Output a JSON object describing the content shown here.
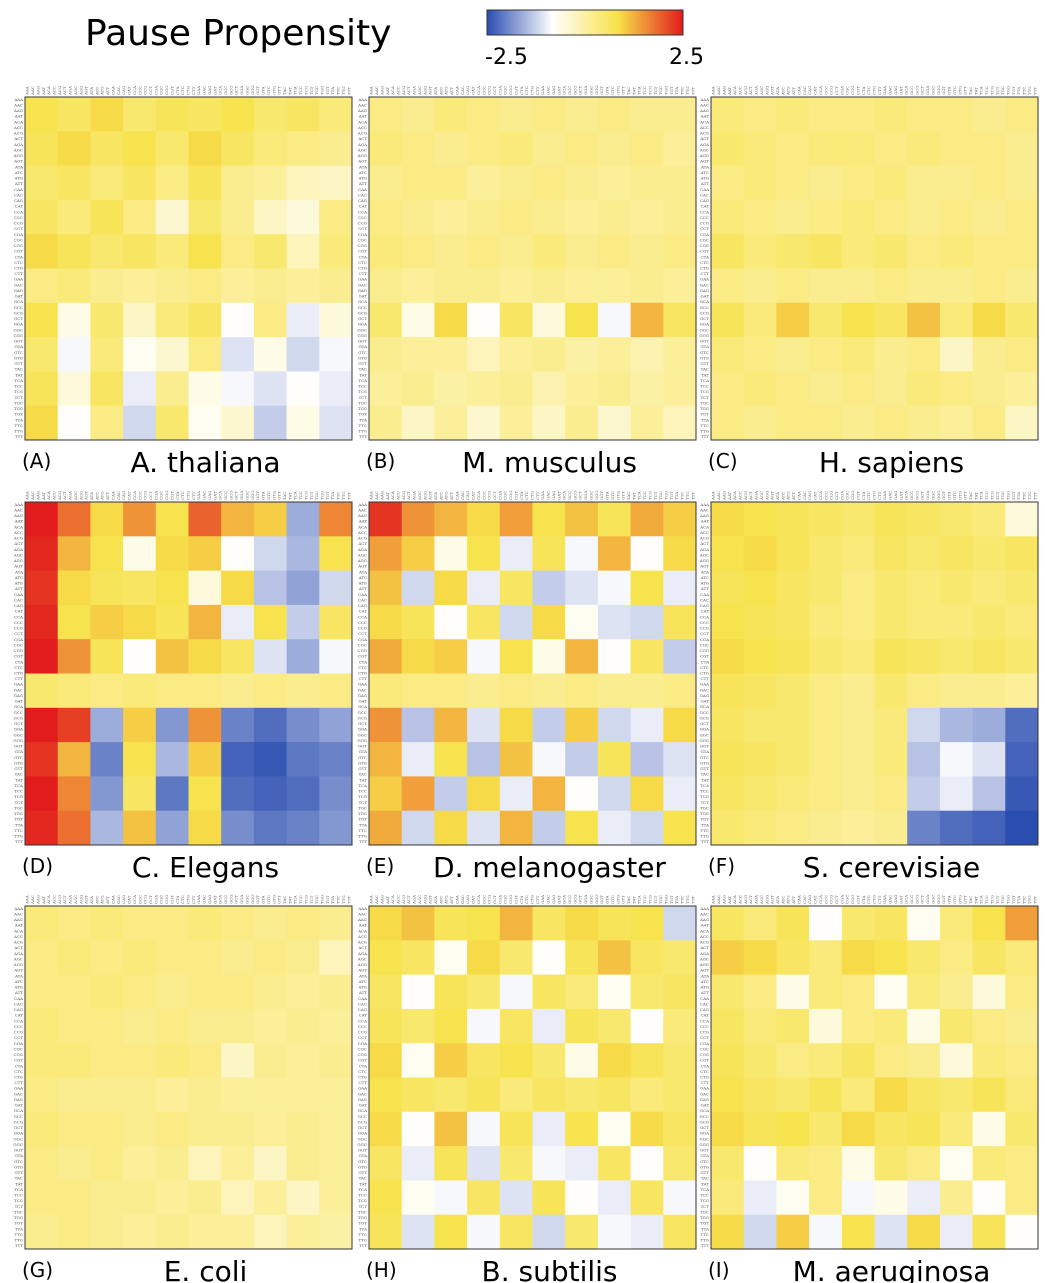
{
  "figure": {
    "title": "Pause Propensity",
    "colorbar": {
      "min": -2.5,
      "max": 2.5,
      "colors": [
        "#2a4db0",
        "#ffffff",
        "#f7e24a",
        "#e21c1c"
      ]
    }
  },
  "codons": [
    "AAA",
    "AAC",
    "AAG",
    "AAT",
    "ACA",
    "ACC",
    "ACG",
    "ACT",
    "AGA",
    "AGC",
    "AGG",
    "AGT",
    "ATA",
    "ATC",
    "ATG",
    "ATT",
    "CAA",
    "CAC",
    "CAG",
    "CAT",
    "CCA",
    "CCC",
    "CCG",
    "CCT",
    "CGA",
    "CGC",
    "CGG",
    "CGT",
    "CTA",
    "CTC",
    "CTG",
    "CTT",
    "GAA",
    "GAC",
    "GAG",
    "GAT",
    "GCA",
    "GCC",
    "GCG",
    "GCT",
    "GGA",
    "GGC",
    "GGG",
    "GGT",
    "GTA",
    "GTC",
    "GTG",
    "GTT",
    "TAC",
    "TAT",
    "TCA",
    "TCC",
    "TCG",
    "TCT",
    "TGC",
    "TGG",
    "TGT",
    "TTA",
    "TTC",
    "TTG",
    "TTT"
  ],
  "chart_data": [
    {
      "type": "heatmap",
      "panel": "(A)",
      "title": "A. thaliana",
      "values": [
        [
          0.8,
          0.6,
          0.9,
          0.5,
          0.7,
          0.6,
          0.8,
          0.5,
          0.6,
          0.4
        ],
        [
          0.7,
          0.9,
          0.6,
          0.8,
          0.5,
          0.9,
          0.6,
          0.4,
          0.3,
          0.2
        ],
        [
          0.5,
          0.6,
          0.4,
          0.6,
          0.3,
          0.7,
          0.2,
          0.1,
          -0.2,
          -0.3
        ],
        [
          0.6,
          0.4,
          0.7,
          0.3,
          -0.4,
          0.5,
          0.2,
          -0.3,
          -0.5,
          0.3
        ],
        [
          0.9,
          0.7,
          0.5,
          0.6,
          0.4,
          0.8,
          0.3,
          0.5,
          -0.2,
          0.4
        ],
        [
          0.3,
          0.4,
          0.2,
          0.1,
          0.2,
          0.3,
          0.1,
          0.2,
          0.1,
          0.2
        ],
        [
          0.8,
          -0.6,
          0.5,
          -0.3,
          0.4,
          0.6,
          -0.8,
          0.3,
          -1.0,
          -0.5
        ],
        [
          0.5,
          -0.9,
          0.4,
          -0.7,
          -0.4,
          0.3,
          -1.1,
          -0.6,
          -1.2,
          -0.9
        ],
        [
          0.7,
          -0.5,
          0.6,
          -1.0,
          0.2,
          -0.6,
          -0.9,
          -1.1,
          -0.8,
          -1.0
        ],
        [
          0.9,
          -0.8,
          0.3,
          -1.2,
          0.5,
          -0.7,
          -0.4,
          -1.3,
          -0.6,
          -1.1
        ]
      ]
    },
    {
      "type": "heatmap",
      "panel": "(B)",
      "title": "M. musculus",
      "values": [
        [
          0.3,
          0.2,
          0.4,
          0.3,
          0.2,
          0.3,
          0.2,
          0.3,
          0.2,
          0.2
        ],
        [
          0.4,
          0.3,
          0.2,
          0.3,
          0.4,
          0.2,
          0.3,
          0.2,
          0.3,
          0.1
        ],
        [
          0.2,
          0.3,
          0.3,
          0.1,
          0.2,
          0.3,
          0.2,
          0.1,
          0.2,
          0.2
        ],
        [
          0.3,
          0.2,
          0.1,
          0.2,
          0.3,
          0.2,
          0.1,
          0.2,
          0.1,
          0.2
        ],
        [
          0.4,
          0.3,
          0.2,
          0.3,
          0.2,
          0.4,
          0.2,
          0.3,
          0.2,
          0.3
        ],
        [
          0.2,
          0.1,
          0.2,
          0.2,
          0.1,
          0.2,
          0.1,
          0.1,
          0.2,
          0.1
        ],
        [
          0.5,
          -0.6,
          0.9,
          -0.8,
          0.6,
          -0.5,
          0.8,
          -0.9,
          1.2,
          0.6
        ],
        [
          0.2,
          0.1,
          0.1,
          -0.2,
          0.1,
          0.2,
          0.0,
          0.1,
          -0.1,
          0.1
        ],
        [
          0.1,
          0.2,
          0.0,
          0.1,
          0.2,
          -0.1,
          0.1,
          0.2,
          0.0,
          0.1
        ],
        [
          0.2,
          -0.3,
          0.1,
          -0.4,
          0.1,
          -0.3,
          0.2,
          -0.4,
          0.1,
          -0.2
        ]
      ]
    },
    {
      "type": "heatmap",
      "panel": "(C)",
      "title": "H. sapiens",
      "values": [
        [
          0.4,
          0.3,
          0.4,
          0.3,
          0.3,
          0.4,
          0.3,
          0.3,
          0.2,
          0.3
        ],
        [
          0.5,
          0.4,
          0.3,
          0.4,
          0.4,
          0.3,
          0.4,
          0.3,
          0.3,
          0.2
        ],
        [
          0.3,
          0.4,
          0.3,
          0.2,
          0.3,
          0.4,
          0.2,
          0.2,
          0.3,
          0.2
        ],
        [
          0.4,
          0.3,
          0.2,
          0.3,
          0.4,
          0.3,
          0.2,
          0.3,
          0.2,
          0.3
        ],
        [
          0.6,
          0.4,
          0.5,
          0.6,
          0.4,
          0.5,
          0.3,
          0.4,
          0.3,
          0.3
        ],
        [
          0.3,
          0.2,
          0.3,
          0.2,
          0.2,
          0.3,
          0.2,
          0.2,
          0.3,
          0.2
        ],
        [
          0.7,
          0.4,
          1.0,
          0.5,
          0.8,
          0.6,
          1.1,
          0.4,
          0.9,
          0.5
        ],
        [
          0.4,
          0.3,
          0.2,
          0.3,
          0.4,
          0.2,
          0.3,
          -0.3,
          0.2,
          0.3
        ],
        [
          0.3,
          0.4,
          0.3,
          0.2,
          0.3,
          0.2,
          0.4,
          0.3,
          0.2,
          0.1
        ],
        [
          0.3,
          0.2,
          0.3,
          0.3,
          0.2,
          0.3,
          0.2,
          0.1,
          0.3,
          -0.3
        ]
      ]
    },
    {
      "type": "heatmap",
      "panel": "(D)",
      "title": "C. Elegans",
      "values": [
        [
          2.5,
          1.8,
          0.9,
          1.5,
          0.8,
          1.9,
          1.2,
          1.0,
          -1.6,
          1.6
        ],
        [
          2.4,
          1.2,
          0.8,
          -0.6,
          0.9,
          1.0,
          -0.8,
          -1.2,
          -1.5,
          0.8
        ],
        [
          2.3,
          0.9,
          0.7,
          0.6,
          0.8,
          -0.5,
          0.9,
          -1.4,
          -1.7,
          -1.2
        ],
        [
          2.4,
          0.8,
          1.0,
          0.9,
          0.7,
          1.2,
          -1.0,
          0.8,
          -1.3,
          0.6
        ],
        [
          2.5,
          1.5,
          0.7,
          -0.8,
          1.1,
          0.9,
          0.6,
          -1.1,
          -1.6,
          -0.9
        ],
        [
          0.5,
          0.4,
          0.3,
          0.4,
          0.3,
          0.3,
          0.2,
          0.3,
          0.2,
          0.3
        ],
        [
          2.5,
          2.2,
          -1.6,
          1.0,
          -1.8,
          1.5,
          -2.0,
          -2.2,
          -1.9,
          -1.7
        ],
        [
          2.3,
          1.2,
          -2.0,
          0.8,
          -1.5,
          1.0,
          -2.3,
          -2.4,
          -2.1,
          -2.0
        ],
        [
          2.5,
          1.6,
          -1.8,
          0.6,
          -2.1,
          0.8,
          -2.2,
          -2.3,
          -2.2,
          -1.9
        ],
        [
          2.4,
          1.8,
          -1.5,
          1.1,
          -1.7,
          0.9,
          -1.9,
          -2.1,
          -2.0,
          -1.8
        ]
      ]
    },
    {
      "type": "heatmap",
      "panel": "(E)",
      "title": "D. melanogaster",
      "values": [
        [
          2.3,
          1.5,
          1.2,
          0.9,
          1.4,
          0.8,
          1.1,
          0.7,
          1.3,
          1.0
        ],
        [
          1.4,
          1.0,
          -0.6,
          0.8,
          -1.0,
          0.7,
          -0.9,
          1.2,
          -0.8,
          0.9
        ],
        [
          1.1,
          -1.2,
          0.9,
          -1.0,
          0.6,
          -1.3,
          -1.1,
          -0.9,
          0.8,
          -1.0
        ],
        [
          0.9,
          0.7,
          -0.8,
          0.6,
          -1.2,
          0.9,
          -0.7,
          -1.1,
          -1.2,
          0.7
        ],
        [
          1.3,
          0.9,
          1.0,
          -0.9,
          0.8,
          -0.6,
          1.2,
          -0.8,
          0.6,
          -1.3
        ],
        [
          0.4,
          0.3,
          0.3,
          0.2,
          0.3,
          0.2,
          0.3,
          0.2,
          0.2,
          0.3
        ],
        [
          1.5,
          -1.4,
          1.2,
          -1.1,
          0.9,
          -1.3,
          1.0,
          -1.2,
          -1.0,
          0.9
        ],
        [
          1.2,
          -1.0,
          0.8,
          -1.4,
          1.1,
          -0.9,
          -1.3,
          0.7,
          -1.4,
          -1.1
        ],
        [
          1.0,
          1.4,
          -1.3,
          0.9,
          -1.0,
          1.2,
          -0.8,
          -1.2,
          0.9,
          -1.0
        ],
        [
          1.3,
          -1.2,
          0.9,
          -1.1,
          1.2,
          -1.3,
          0.8,
          -1.0,
          -1.2,
          0.8
        ]
      ]
    },
    {
      "type": "heatmap",
      "panel": "(F)",
      "title": "S. cerevisiae",
      "values": [
        [
          0.9,
          0.8,
          0.7,
          0.6,
          0.5,
          0.7,
          0.6,
          0.5,
          0.4,
          -0.5
        ],
        [
          0.8,
          0.9,
          0.7,
          0.5,
          0.4,
          0.6,
          0.5,
          0.6,
          0.5,
          0.6
        ],
        [
          0.7,
          0.8,
          0.6,
          0.5,
          0.3,
          0.5,
          0.4,
          0.5,
          0.4,
          0.5
        ],
        [
          0.8,
          0.7,
          0.6,
          0.4,
          0.3,
          0.5,
          0.4,
          0.4,
          0.5,
          0.4
        ],
        [
          0.9,
          0.8,
          0.7,
          0.5,
          0.4,
          0.7,
          0.6,
          0.5,
          0.6,
          0.5
        ],
        [
          0.7,
          0.6,
          0.5,
          0.3,
          0.2,
          0.5,
          0.3,
          0.2,
          0.2,
          0.1
        ],
        [
          0.6,
          0.5,
          0.5,
          0.3,
          0.2,
          0.4,
          -1.2,
          -1.5,
          -1.6,
          -2.2
        ],
        [
          0.7,
          0.6,
          0.5,
          0.3,
          0.2,
          0.4,
          -1.4,
          -0.9,
          -1.1,
          -2.3
        ],
        [
          0.6,
          0.5,
          0.4,
          0.3,
          0.2,
          0.3,
          -1.3,
          -1.0,
          -1.4,
          -2.4
        ],
        [
          0.5,
          0.4,
          0.3,
          0.2,
          0.1,
          0.2,
          -2.0,
          -2.2,
          -2.3,
          -2.5
        ]
      ]
    },
    {
      "type": "heatmap",
      "panel": "(G)",
      "title": "E. coli",
      "values": [
        [
          0.4,
          0.3,
          0.4,
          0.3,
          0.3,
          0.4,
          0.3,
          0.2,
          0.3,
          0.2
        ],
        [
          0.3,
          0.4,
          0.3,
          0.4,
          0.3,
          0.3,
          0.2,
          0.3,
          0.2,
          -0.2
        ],
        [
          0.3,
          0.3,
          0.4,
          0.3,
          0.2,
          0.3,
          0.3,
          0.2,
          0.1,
          0.2
        ],
        [
          0.4,
          0.3,
          0.3,
          0.2,
          0.3,
          0.2,
          0.2,
          0.1,
          0.2,
          0.1
        ],
        [
          0.4,
          0.4,
          0.3,
          0.3,
          0.4,
          0.3,
          -0.3,
          0.2,
          0.1,
          0.2
        ],
        [
          0.3,
          0.2,
          0.2,
          0.2,
          0.1,
          0.2,
          0.1,
          0.1,
          0.1,
          0.1
        ],
        [
          0.4,
          0.3,
          0.3,
          0.2,
          0.3,
          0.2,
          0.2,
          0.1,
          0.2,
          0.1
        ],
        [
          0.3,
          0.2,
          0.3,
          0.1,
          0.2,
          -0.2,
          0.1,
          -0.3,
          0.2,
          0.1
        ],
        [
          0.3,
          0.3,
          0.2,
          0.2,
          0.1,
          0.2,
          -0.2,
          0.1,
          -0.3,
          0.1
        ],
        [
          0.2,
          0.3,
          0.2,
          0.1,
          0.2,
          0.1,
          0.1,
          -0.2,
          0.1,
          0.0
        ]
      ]
    },
    {
      "type": "heatmap",
      "panel": "(H)",
      "title": "B. subtilis",
      "values": [
        [
          0.9,
          1.1,
          0.7,
          0.8,
          1.2,
          0.6,
          0.9,
          0.7,
          0.8,
          -1.2
        ],
        [
          0.8,
          0.6,
          -0.7,
          0.9,
          0.5,
          -0.8,
          0.7,
          1.1,
          0.6,
          0.5
        ],
        [
          0.6,
          -0.8,
          0.7,
          0.5,
          -0.9,
          0.6,
          0.4,
          -0.7,
          0.5,
          0.6
        ],
        [
          0.7,
          0.5,
          0.8,
          -0.9,
          0.6,
          -1.0,
          0.7,
          0.5,
          -0.8,
          0.4
        ],
        [
          0.9,
          -0.7,
          1.0,
          0.6,
          0.8,
          0.5,
          -0.6,
          0.9,
          0.7,
          0.5
        ],
        [
          0.8,
          0.6,
          0.5,
          0.7,
          0.4,
          0.6,
          0.5,
          0.6,
          0.4,
          0.5
        ],
        [
          0.9,
          -0.8,
          1.1,
          -0.9,
          0.7,
          -1.0,
          0.8,
          -0.7,
          0.9,
          0.6
        ],
        [
          0.6,
          -1.0,
          0.7,
          -1.1,
          0.5,
          -0.9,
          -1.0,
          0.6,
          -0.8,
          0.5
        ],
        [
          0.8,
          -0.7,
          -0.9,
          0.6,
          -1.1,
          0.7,
          -0.8,
          -1.0,
          0.6,
          -0.9
        ],
        [
          0.7,
          -1.1,
          0.8,
          -0.9,
          0.6,
          -1.2,
          0.5,
          -0.9,
          -1.0,
          0.6
        ]
      ]
    },
    {
      "type": "heatmap",
      "panel": "(I)",
      "title": "M. aeruginosa",
      "values": [
        [
          0.6,
          0.4,
          0.7,
          -0.8,
          0.5,
          0.6,
          -0.7,
          0.4,
          0.8,
          1.4
        ],
        [
          1.0,
          0.9,
          0.6,
          0.4,
          0.9,
          0.8,
          0.5,
          0.3,
          0.6,
          0.4
        ],
        [
          0.5,
          0.3,
          -0.6,
          0.4,
          0.3,
          -0.7,
          0.4,
          0.2,
          -0.5,
          0.3
        ],
        [
          0.6,
          0.4,
          0.5,
          -0.5,
          0.3,
          0.4,
          -0.6,
          0.5,
          0.3,
          0.2
        ],
        [
          0.7,
          0.5,
          0.3,
          0.4,
          0.6,
          0.3,
          0.2,
          -0.5,
          0.4,
          0.3
        ],
        [
          0.8,
          0.6,
          0.5,
          0.7,
          0.4,
          0.9,
          0.6,
          0.5,
          0.7,
          0.4
        ],
        [
          0.9,
          0.7,
          0.8,
          0.5,
          0.9,
          0.6,
          0.7,
          0.4,
          -0.6,
          0.5
        ],
        [
          0.5,
          -0.8,
          0.4,
          0.3,
          -0.6,
          0.5,
          0.3,
          -0.7,
          0.4,
          0.3
        ],
        [
          0.4,
          -1.0,
          -0.7,
          0.3,
          -0.9,
          -0.6,
          -1.0,
          0.2,
          -0.8,
          0.3
        ],
        [
          0.9,
          -1.2,
          1.0,
          -0.9,
          0.8,
          -1.1,
          0.9,
          -1.0,
          0.7,
          -0.8
        ]
      ]
    }
  ]
}
